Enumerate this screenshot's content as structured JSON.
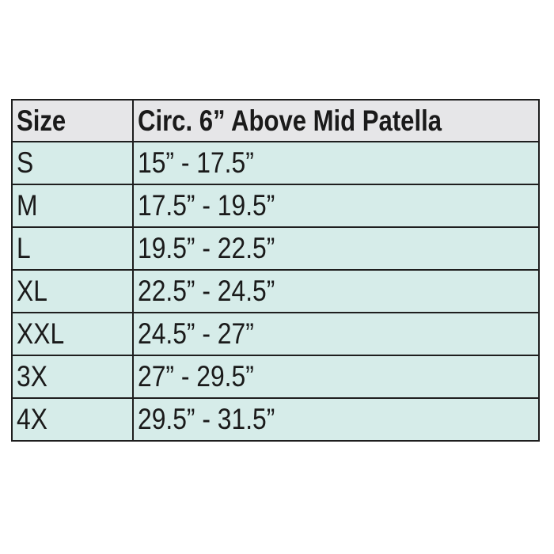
{
  "table": {
    "headers": [
      "Size",
      "Circ. 6” Above Mid Patella"
    ],
    "rows": [
      [
        "S",
        "15” - 17.5”"
      ],
      [
        "M",
        "17.5” - 19.5”"
      ],
      [
        "L",
        "19.5” - 22.5”"
      ],
      [
        "XL",
        "22.5” - 24.5”"
      ],
      [
        "XXL",
        "24.5” - 27”"
      ],
      [
        "3X",
        "27” - 29.5”"
      ],
      [
        "4X",
        "29.5” - 31.5”"
      ]
    ],
    "colors": {
      "header_bg": "#e6e6e8",
      "row_bg": "#d6ece9",
      "border": "#1e1e1e"
    }
  }
}
